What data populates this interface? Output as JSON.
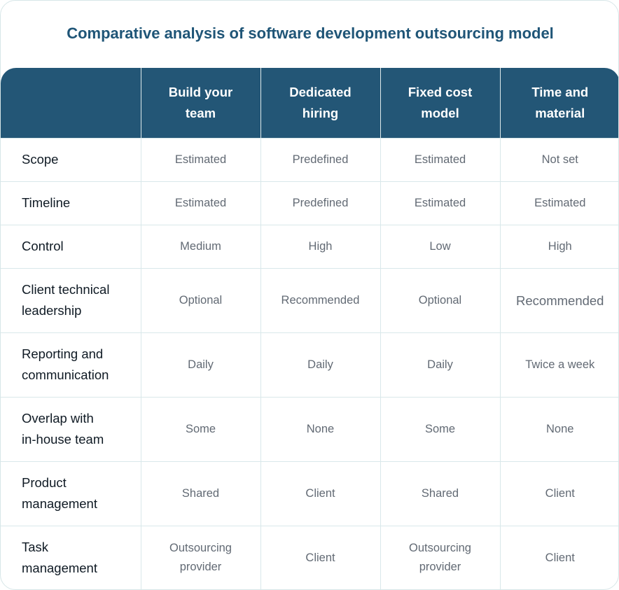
{
  "title": "Comparative analysis of software development outsourcing model",
  "header": {
    "corner": "",
    "columns": [
      [
        "Build your",
        "team"
      ],
      [
        "Dedicated",
        "hiring"
      ],
      [
        "Fixed cost",
        "model"
      ],
      [
        "Time and",
        "material"
      ]
    ]
  },
  "rows": [
    {
      "label": [
        "Scope"
      ],
      "cells": [
        [
          "Estimated"
        ],
        [
          "Predefined"
        ],
        [
          "Estimated"
        ],
        [
          "Not set"
        ]
      ]
    },
    {
      "label": [
        "Timeline"
      ],
      "cells": [
        [
          "Estimated"
        ],
        [
          "Predefined"
        ],
        [
          "Estimated"
        ],
        [
          "Estimated"
        ]
      ]
    },
    {
      "label": [
        "Control"
      ],
      "cells": [
        [
          "Medium"
        ],
        [
          "High"
        ],
        [
          "Low"
        ],
        [
          "High"
        ]
      ]
    },
    {
      "label": [
        "Client technical",
        "leadership"
      ],
      "cells": [
        [
          "Optional"
        ],
        [
          "Recommended"
        ],
        [
          "Optional"
        ],
        [
          "Recommended"
        ]
      ]
    },
    {
      "label": [
        "Reporting and",
        "communication"
      ],
      "cells": [
        [
          "Daily"
        ],
        [
          "Daily"
        ],
        [
          "Daily"
        ],
        [
          "Twice a week"
        ]
      ]
    },
    {
      "label": [
        "Overlap with",
        "in-house team"
      ],
      "cells": [
        [
          "Some"
        ],
        [
          "None"
        ],
        [
          "Some"
        ],
        [
          "None"
        ]
      ]
    },
    {
      "label": [
        "Product",
        "management"
      ],
      "cells": [
        [
          "Shared"
        ],
        [
          "Client"
        ],
        [
          "Shared"
        ],
        [
          "Client"
        ]
      ]
    },
    {
      "label": [
        "Task",
        "management"
      ],
      "cells": [
        [
          "Outsourcing",
          "provider"
        ],
        [
          "Client"
        ],
        [
          "Outsourcing",
          "provider"
        ],
        [
          "Client"
        ]
      ]
    }
  ]
}
